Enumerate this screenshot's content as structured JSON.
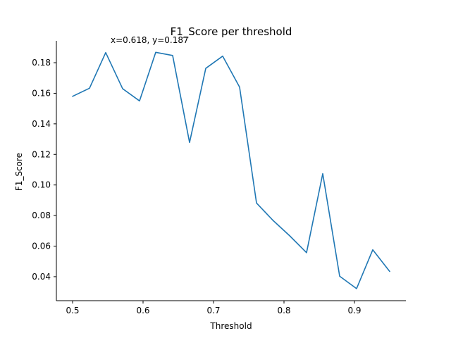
{
  "chart_data": {
    "type": "line",
    "title": "F1_Score per threshold",
    "xlabel": "Threshold",
    "ylabel": "F1_Score",
    "xlim": [
      0.477,
      0.973
    ],
    "ylim": [
      0.0243,
      0.1943
    ],
    "x_ticks": [
      0.5,
      0.6,
      0.7,
      0.8,
      0.9
    ],
    "x_tick_labels": [
      "0.5",
      "0.6",
      "0.7",
      "0.8",
      "0.9"
    ],
    "y_ticks": [
      0.04,
      0.06,
      0.08,
      0.1,
      0.12,
      0.14,
      0.16,
      0.18
    ],
    "y_tick_labels": [
      "0.04",
      "0.06",
      "0.08",
      "0.10",
      "0.12",
      "0.14",
      "0.16",
      "0.18"
    ],
    "grid": false,
    "annotation": {
      "text": "x=0.618, y=0.187",
      "x": 0.618,
      "y": 0.187
    },
    "colors": {
      "series": "#1f77b4",
      "axis": "#000000"
    },
    "series": [
      {
        "x": [
          0.5,
          0.524,
          0.547,
          0.571,
          0.595,
          0.618,
          0.642,
          0.666,
          0.689,
          0.713,
          0.737,
          0.761,
          0.784,
          0.808,
          0.832,
          0.855,
          0.879,
          0.903,
          0.926,
          0.95
        ],
        "y": [
          0.158,
          0.1633,
          0.1866,
          0.163,
          0.155,
          0.1868,
          0.1847,
          0.1278,
          0.1763,
          0.1843,
          0.164,
          0.0882,
          0.077,
          0.0668,
          0.0557,
          0.1074,
          0.0403,
          0.0322,
          0.0576,
          0.0434
        ]
      }
    ]
  }
}
